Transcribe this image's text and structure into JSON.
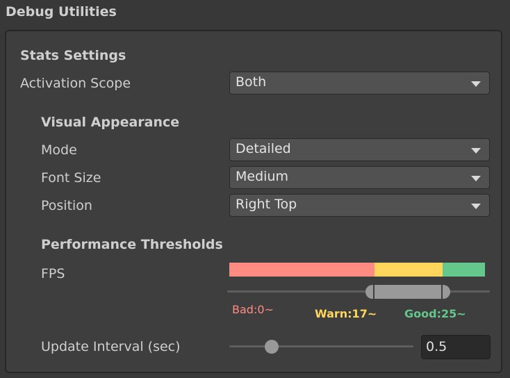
{
  "title": "Debug Utilities",
  "stats": {
    "heading": "Stats Settings",
    "activation_scope": {
      "label": "Activation Scope",
      "value": "Both"
    },
    "visual": {
      "heading": "Visual Appearance",
      "mode": {
        "label": "Mode",
        "value": "Detailed"
      },
      "font_size": {
        "label": "Font Size",
        "value": "Medium"
      },
      "position": {
        "label": "Position",
        "value": "Right Top"
      }
    },
    "thresholds": {
      "heading": "Performance Thresholds",
      "fps_label": "FPS",
      "fps_max": 30,
      "warn": 17,
      "good": 25,
      "bad_label": "Bad:0~",
      "warn_label": "Warn:17~",
      "good_label": "Good:25~",
      "colors": {
        "bad": "#fe8c82",
        "warn": "#ffd65c",
        "good": "#64c78c"
      }
    },
    "update_interval": {
      "label": "Update Interval (sec)",
      "value": "0.5",
      "slider_fraction": 0.23
    }
  }
}
